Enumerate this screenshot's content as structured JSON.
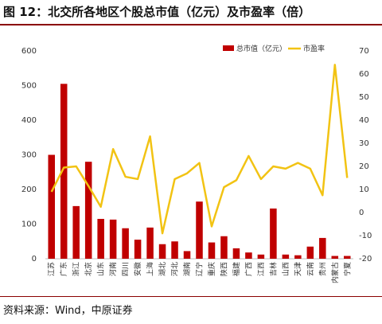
{
  "title": "图  12：北交所各地区个股总市值（亿元）及市盈率（倍）",
  "source": "资料来源：Wind，中原证券",
  "colors": {
    "bar": "#c00000",
    "line": "#f2c313",
    "axis": "#999999",
    "rule": "#8b0000"
  },
  "chart_data": {
    "type": "bar+line",
    "categories": [
      "江苏",
      "广东",
      "浙江",
      "北京",
      "山东",
      "河南",
      "四川",
      "安徽",
      "上海",
      "湖北",
      "河北",
      "湖南",
      "辽宁",
      "重庆",
      "陕西",
      "福建",
      "广西",
      "江西",
      "吉林",
      "山西",
      "天津",
      "云南",
      "贵州",
      "内蒙古",
      "宁夏"
    ],
    "series": [
      {
        "name": "总市值（亿元）",
        "type": "bar",
        "axis": "left",
        "values": [
          300,
          505,
          152,
          280,
          115,
          113,
          88,
          55,
          90,
          42,
          50,
          22,
          165,
          47,
          65,
          30,
          18,
          12,
          145,
          12,
          10,
          35,
          60,
          8,
          8
        ]
      },
      {
        "name": "市盈率",
        "type": "line",
        "axis": "right",
        "values": [
          9,
          19.5,
          20,
          11.5,
          2.5,
          27.5,
          15.5,
          14.5,
          33,
          -9,
          14.5,
          17,
          21.5,
          -6,
          11,
          14,
          24.5,
          14.5,
          20,
          19,
          21.5,
          19,
          7.5,
          64,
          15
        ]
      }
    ],
    "left_axis": {
      "ylim": [
        0,
        600
      ],
      "ticks": [
        0,
        100,
        200,
        300,
        400,
        500,
        600
      ]
    },
    "right_axis": {
      "ylim": [
        -20,
        70
      ],
      "ticks": [
        -20,
        -10,
        0,
        10,
        20,
        30,
        40,
        50,
        60,
        70
      ]
    },
    "legend": {
      "position": "top-right"
    }
  }
}
